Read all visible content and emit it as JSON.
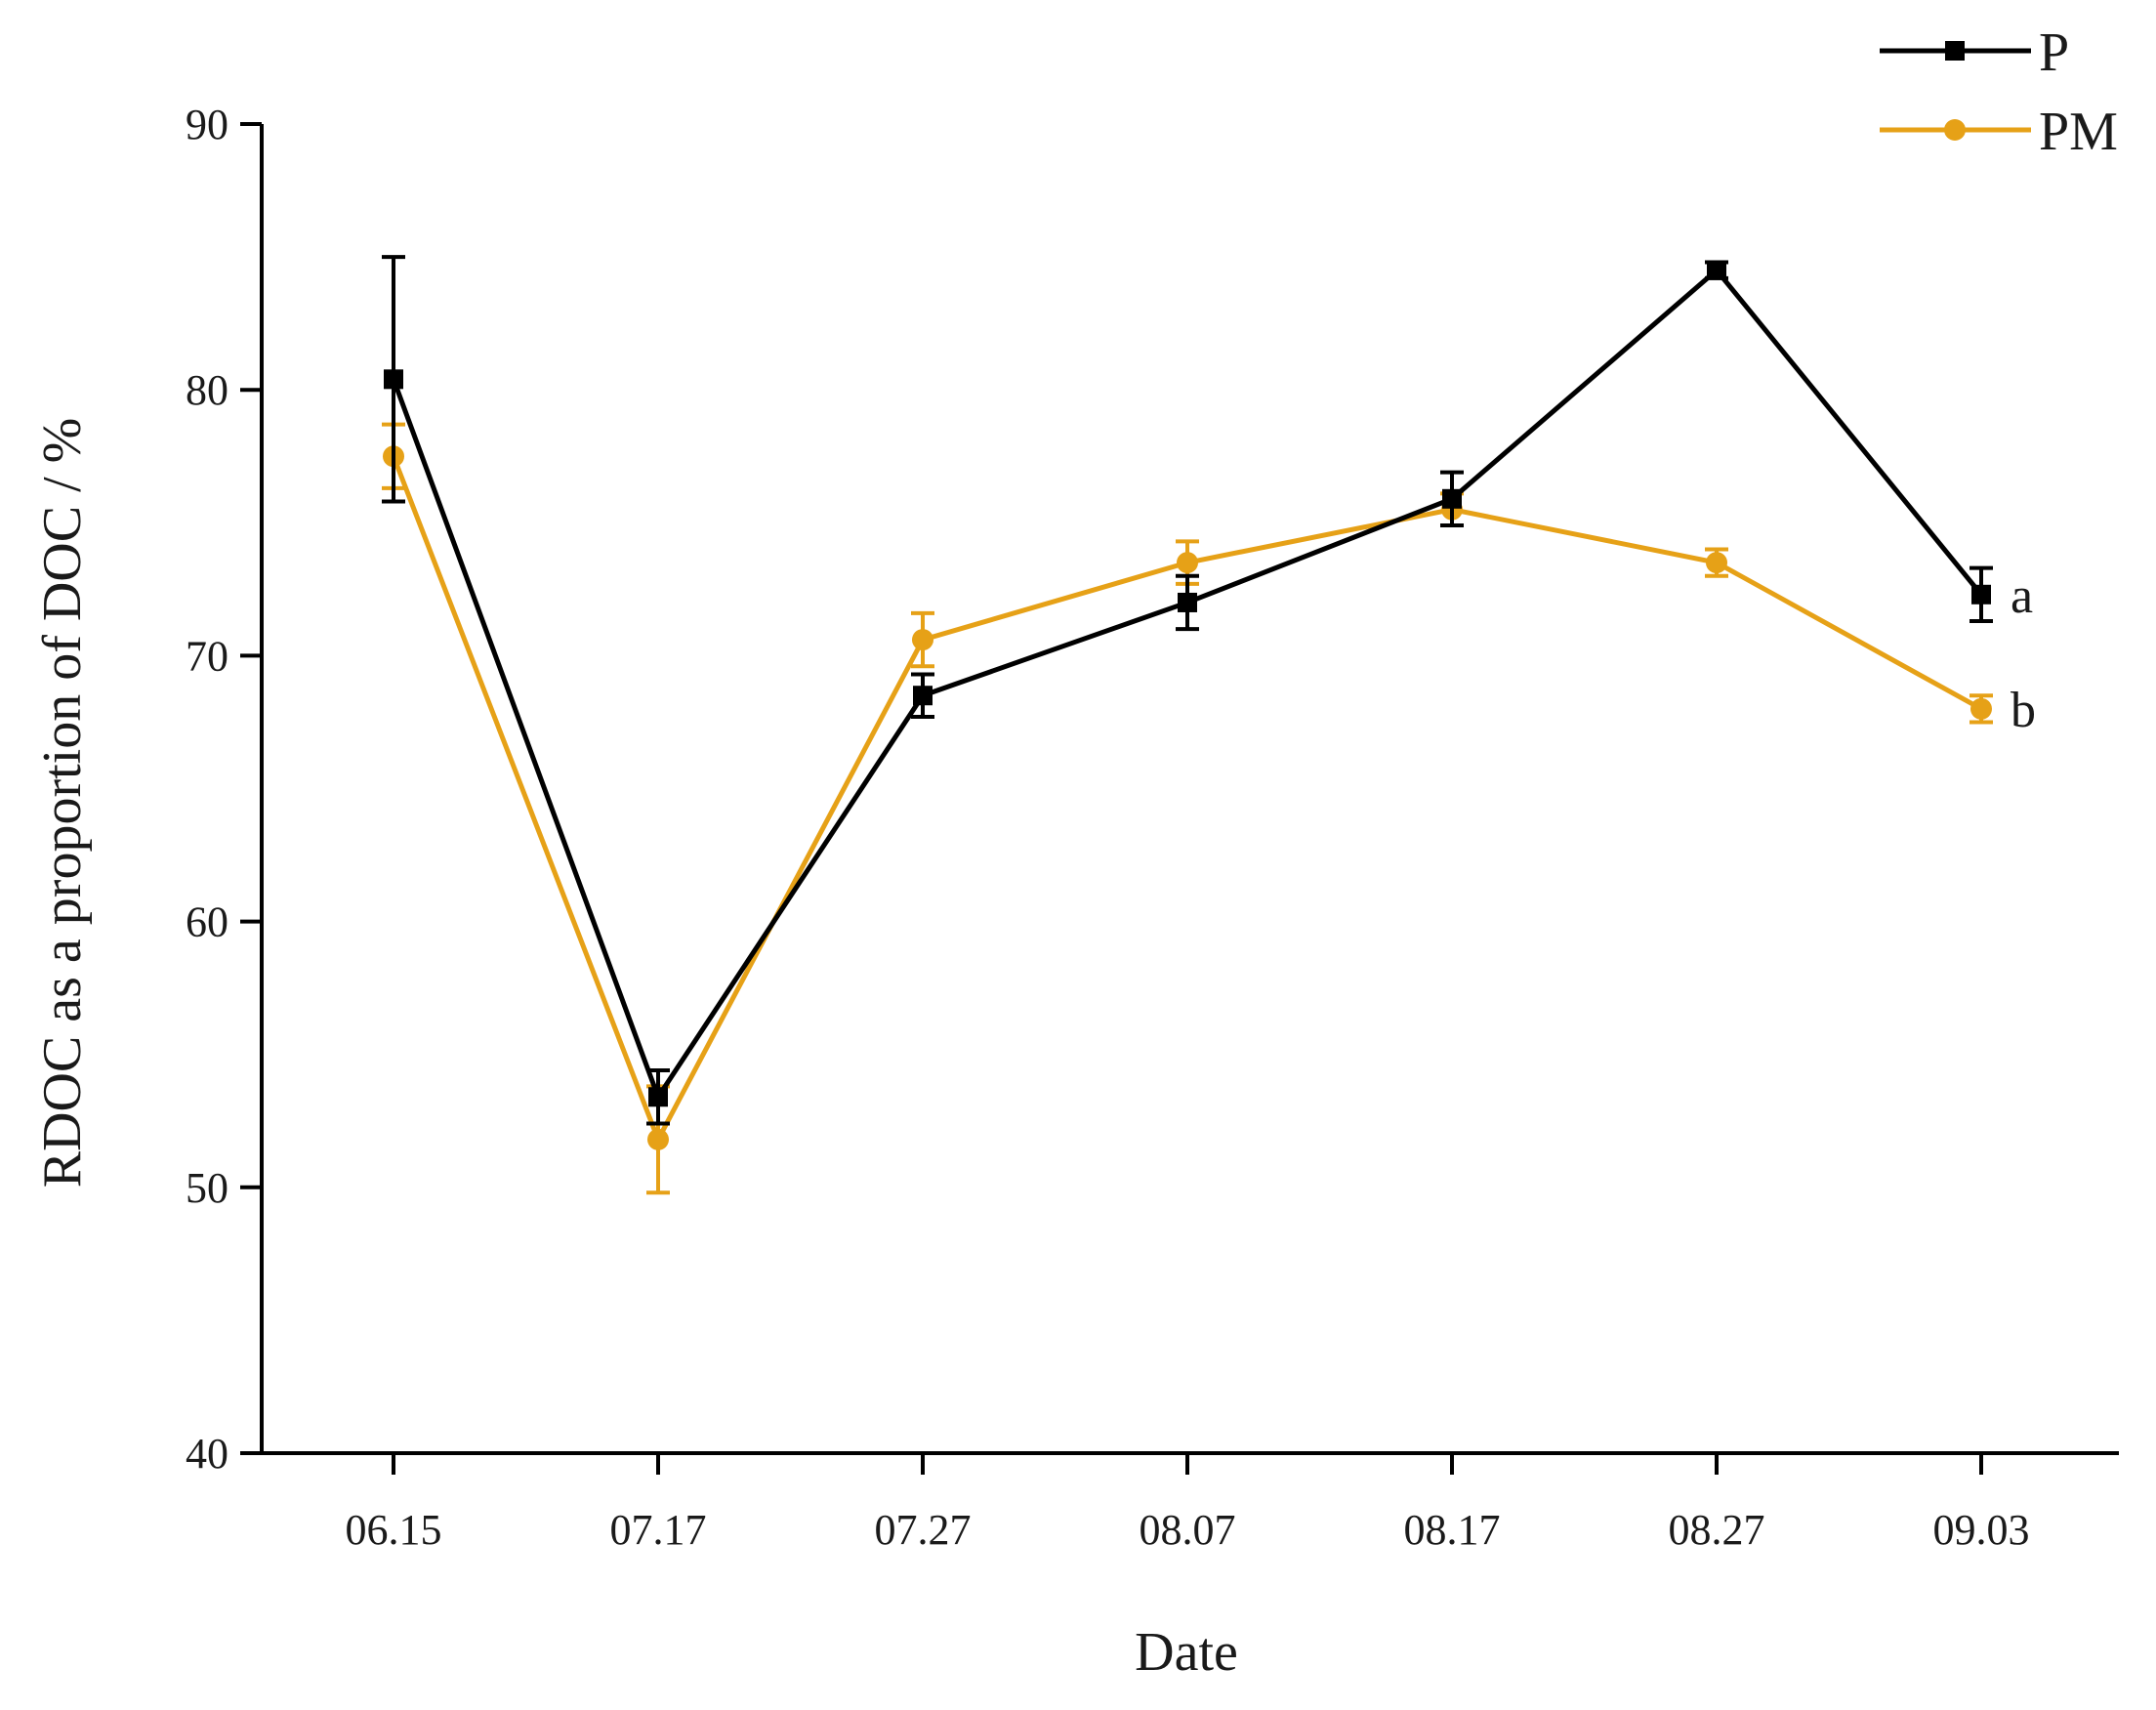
{
  "chart_data": {
    "type": "line",
    "title": "",
    "xlabel": "Date",
    "ylabel": "RDOC as a proportion of DOC / %",
    "ylim": [
      40,
      90
    ],
    "yticks": [
      40,
      50,
      60,
      70,
      80,
      90
    ],
    "categories": [
      "06.15",
      "07.17",
      "07.27",
      "08.07",
      "08.17",
      "08.27",
      "09.03"
    ],
    "legend_position": "top-right",
    "series": [
      {
        "name": "P",
        "color": "#000000",
        "marker": "square",
        "values": [
          80.4,
          53.4,
          68.5,
          72.0,
          75.9,
          84.5,
          72.3
        ],
        "errors": [
          4.6,
          1.0,
          0.8,
          1.0,
          1.0,
          0.3,
          1.0
        ],
        "significance_label": "a"
      },
      {
        "name": "PM",
        "color": "#E6A117",
        "marker": "circle",
        "values": [
          77.5,
          51.8,
          70.6,
          73.5,
          75.5,
          73.5,
          68.0
        ],
        "errors": [
          1.2,
          2.0,
          1.0,
          0.8,
          0.6,
          0.5,
          0.5
        ],
        "significance_label": "b"
      }
    ]
  }
}
